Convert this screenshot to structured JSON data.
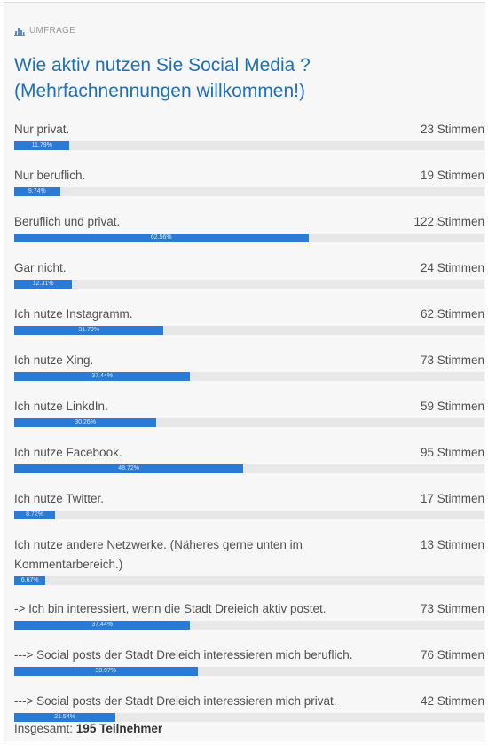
{
  "header": {
    "icon": "bar-chart-icon",
    "label": "UMFRAGE"
  },
  "title_line1": "Wie aktiv nutzen Sie Social Media ?",
  "title_line2": "(Mehrfachnennungen willkommen!)",
  "accent_color": "#2a7ad6",
  "title_color": "#1f6fb8",
  "options": [
    {
      "label": "Nur privat.",
      "votes": "23 Stimmen",
      "percent_label": "11.79%",
      "percent": 11.79
    },
    {
      "label": "Nur beruflich.",
      "votes": "19 Stimmen",
      "percent_label": "9.74%",
      "percent": 9.74
    },
    {
      "label": "Beruflich und privat.",
      "votes": "122 Stimmen",
      "percent_label": "62.56%",
      "percent": 62.56
    },
    {
      "label": "Gar nicht.",
      "votes": "24 Stimmen",
      "percent_label": "12.31%",
      "percent": 12.31
    },
    {
      "label": "Ich nutze Instagramm.",
      "votes": "62 Stimmen",
      "percent_label": "31.79%",
      "percent": 31.79
    },
    {
      "label": "Ich nutze Xing.",
      "votes": "73 Stimmen",
      "percent_label": "37.44%",
      "percent": 37.44
    },
    {
      "label": "Ich nutze LinkdIn.",
      "votes": "59 Stimmen",
      "percent_label": "30.26%",
      "percent": 30.26
    },
    {
      "label": "Ich nutze Facebook.",
      "votes": "95 Stimmen",
      "percent_label": "48.72%",
      "percent": 48.72
    },
    {
      "label": "Ich nutze Twitter.",
      "votes": "17 Stimmen",
      "percent_label": "8.72%",
      "percent": 8.72
    },
    {
      "label": "Ich nutze andere Netzwerke. (Näheres gerne unten im Kommentarbereich.)",
      "votes": "13 Stimmen",
      "percent_label": "6.67%",
      "percent": 6.67,
      "tall": true
    },
    {
      "label": "-> Ich bin interessiert, wenn die Stadt Dreieich aktiv postet.",
      "votes": "73 Stimmen",
      "percent_label": "37.44%",
      "percent": 37.44
    },
    {
      "label": "---> Social posts der Stadt Dreieich interessieren mich beruflich.",
      "votes": "76 Stimmen",
      "percent_label": "38.97%",
      "percent": 38.97
    },
    {
      "label": "---> Social posts der Stadt Dreieich interessieren mich privat.",
      "votes": "42 Stimmen",
      "percent_label": "21.54%",
      "percent": 21.54
    }
  ],
  "total": {
    "label": "Insgesamt:",
    "value": "195 Teilnehmer"
  }
}
